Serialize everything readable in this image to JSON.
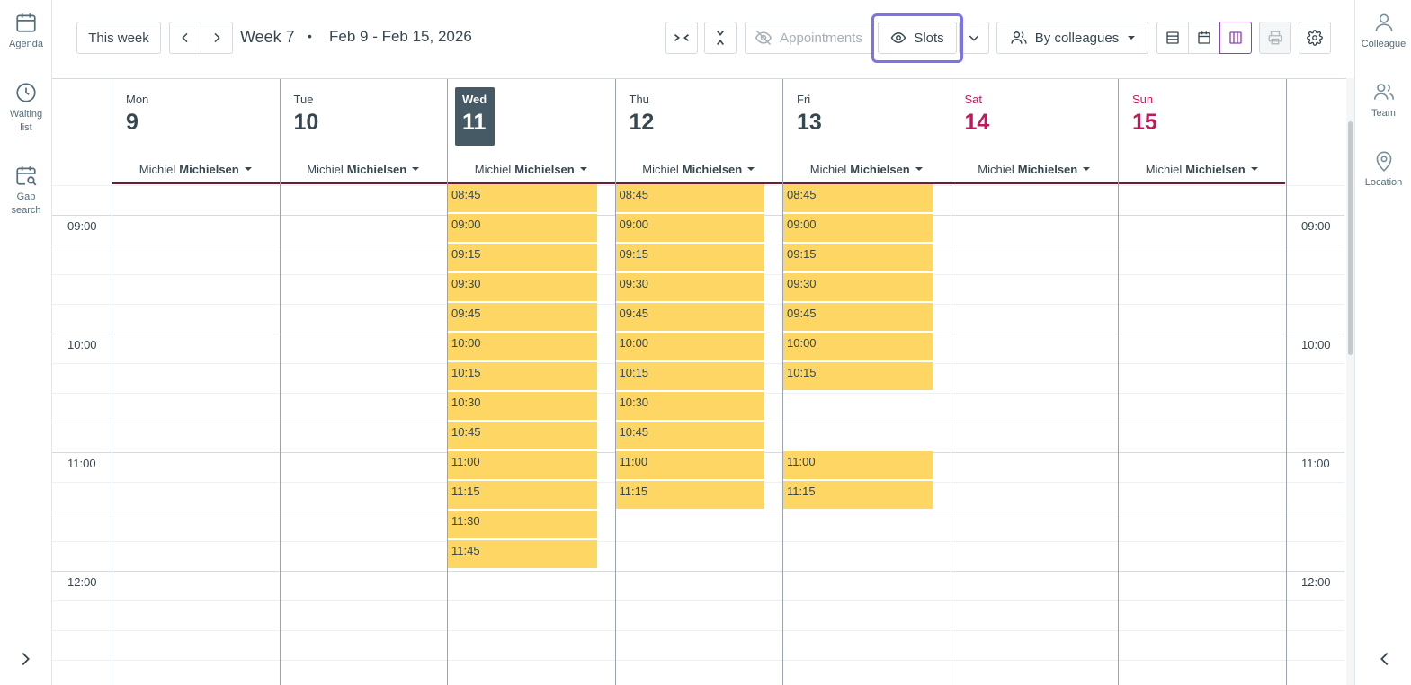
{
  "left_sidebar": {
    "items": [
      {
        "label": "Agenda",
        "icon": "calendar-icon"
      },
      {
        "label": "Waiting list",
        "icon": "clock-icon"
      },
      {
        "label": "Gap search",
        "icon": "calendar-search-icon"
      }
    ],
    "toggle_icon": "chevron-right-icon"
  },
  "right_sidebar": {
    "items": [
      {
        "label": "Colleague",
        "icon": "person-icon"
      },
      {
        "label": "Team",
        "icon": "people-icon"
      },
      {
        "label": "Location",
        "icon": "location-pin-icon"
      }
    ],
    "toggle_icon": "chevron-left-icon"
  },
  "toolbar": {
    "this_week_label": "This week",
    "prev_icon": "chevron-left-icon",
    "next_icon": "chevron-right-icon",
    "week_label": "Week 7",
    "separator": "•",
    "date_range": "Feb 9 - Feb 15, 2026",
    "appointments_label": "Appointments",
    "appointments_state": "disabled",
    "slots_label": "Slots",
    "slots_state": "highlighted",
    "group_by_label": "By colleagues",
    "active_view": "columns",
    "accent_color": "#7c73e6"
  },
  "calendar": {
    "colleague_first": "Michiel",
    "colleague_last": "Michielsen",
    "days": [
      {
        "name": "Mon",
        "num": "9"
      },
      {
        "name": "Tue",
        "num": "10"
      },
      {
        "name": "Wed",
        "num": "11",
        "today": true
      },
      {
        "name": "Thu",
        "num": "12"
      },
      {
        "name": "Fri",
        "num": "13"
      },
      {
        "name": "Sat",
        "num": "14",
        "weekend": true
      },
      {
        "name": "Sun",
        "num": "15",
        "weekend": true
      }
    ],
    "hours": [
      "09:00",
      "10:00",
      "11:00",
      "12:00"
    ],
    "slot_color": "#fdd663",
    "slots": {
      "Wed": [
        "08:45",
        "09:00",
        "09:15",
        "09:30",
        "09:45",
        "10:00",
        "10:15",
        "10:30",
        "10:45",
        "11:00",
        "11:15",
        "11:30",
        "11:45"
      ],
      "Thu": [
        "08:45",
        "09:00",
        "09:15",
        "09:30",
        "09:45",
        "10:00",
        "10:15",
        "10:30",
        "10:45",
        "11:00",
        "11:15"
      ],
      "Fri": [
        "08:45",
        "09:00",
        "09:15",
        "09:30",
        "09:45",
        "10:00",
        "10:15",
        "11:00",
        "11:15"
      ]
    }
  }
}
